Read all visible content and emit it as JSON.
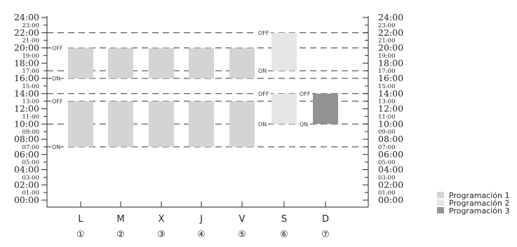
{
  "chart_data": {
    "type": "bar",
    "y_axis": {
      "range": [
        0,
        24
      ],
      "major_labels": [
        "00:00",
        "02:00",
        "04:00",
        "06:00",
        "08:00",
        "10:00",
        "12:00",
        "14:00",
        "16:00",
        "18:00",
        "20:00",
        "22:00",
        "24:00"
      ],
      "minor_labels": [
        "01:00",
        "03:00",
        "05:00",
        "07:00",
        "09:00",
        "11:00",
        "13:00",
        "15:00",
        "17:00",
        "19:00",
        "21:00",
        "23:00"
      ]
    },
    "reference_lines": [
      7,
      10,
      13,
      14,
      16,
      17,
      20,
      22
    ],
    "days": [
      {
        "label": "L",
        "number": "①"
      },
      {
        "label": "M",
        "number": "②"
      },
      {
        "label": "X",
        "number": "③"
      },
      {
        "label": "J",
        "number": "④"
      },
      {
        "label": "V",
        "number": "⑤"
      },
      {
        "label": "S",
        "number": "⑥"
      },
      {
        "label": "D",
        "number": "⑦"
      }
    ],
    "series": [
      {
        "name": "Programación 1",
        "color": "#d4d4d4"
      },
      {
        "name": "Programación 2",
        "color": "#e6e6e6"
      },
      {
        "name": "Programación 3",
        "color": "#939393"
      }
    ],
    "bars": [
      {
        "day": 0,
        "start": 16,
        "end": 20,
        "series": 0
      },
      {
        "day": 0,
        "start": 7,
        "end": 13,
        "series": 0
      },
      {
        "day": 1,
        "start": 16,
        "end": 20,
        "series": 0
      },
      {
        "day": 1,
        "start": 7,
        "end": 13,
        "series": 0
      },
      {
        "day": 2,
        "start": 16,
        "end": 20,
        "series": 0
      },
      {
        "day": 2,
        "start": 7,
        "end": 13,
        "series": 0
      },
      {
        "day": 3,
        "start": 16,
        "end": 20,
        "series": 0
      },
      {
        "day": 3,
        "start": 7,
        "end": 13,
        "series": 0
      },
      {
        "day": 4,
        "start": 16,
        "end": 20,
        "series": 0
      },
      {
        "day": 4,
        "start": 7,
        "end": 13,
        "series": 0
      },
      {
        "day": 5,
        "start": 17,
        "end": 22,
        "series": 1
      },
      {
        "day": 5,
        "start": 10,
        "end": 14,
        "series": 1
      },
      {
        "day": 6,
        "start": 10,
        "end": 14,
        "series": 2
      }
    ],
    "state_labels": [
      {
        "text": "OFF",
        "hour": 20,
        "anchor": "left"
      },
      {
        "text": "ON",
        "hour": 16,
        "anchor": "left"
      },
      {
        "text": "OFF",
        "hour": 13,
        "anchor": "left"
      },
      {
        "text": "ON",
        "hour": 7,
        "anchor": "left"
      },
      {
        "text": "OFF",
        "hour": 22,
        "anchor": "sat"
      },
      {
        "text": "ON",
        "hour": 17,
        "anchor": "sat"
      },
      {
        "text": "OFF",
        "hour": 14,
        "anchor": "sat"
      },
      {
        "text": "ON",
        "hour": 10,
        "anchor": "sat"
      },
      {
        "text": "OFF",
        "hour": 14,
        "anchor": "sun"
      },
      {
        "text": "ON",
        "hour": 10,
        "anchor": "sun"
      }
    ],
    "legend_position": "bottom-right"
  }
}
